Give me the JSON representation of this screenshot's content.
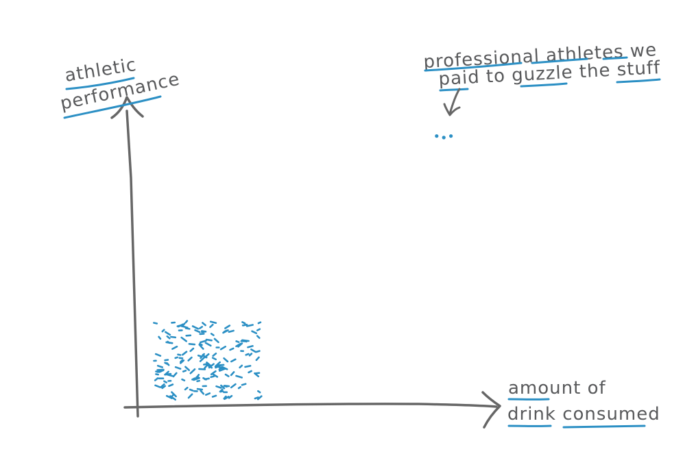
{
  "chart_data": {
    "type": "scatter",
    "xlabel_lines": [
      "amount of",
      "drink consumed"
    ],
    "ylabel_lines": [
      "athletic",
      "performance"
    ],
    "axis_ticks": "none",
    "grid": false,
    "clusters": [
      {
        "description": "dense cluster",
        "x_range": [
          0.05,
          0.35
        ],
        "y_range": [
          0.02,
          0.28
        ],
        "color": "#2b8fc4"
      },
      {
        "description": "outlier group",
        "points": [
          [
            0.84,
            0.91
          ],
          [
            0.86,
            0.905
          ],
          [
            0.88,
            0.91
          ]
        ],
        "color": "#2b8fc4"
      }
    ],
    "annotation": {
      "lines": [
        "professional athletes we",
        "paid to guzzle the stuff"
      ],
      "arrow_to": "outlier group"
    }
  },
  "colors": {
    "axis": "#666666",
    "ink": "#58595b",
    "accent": "#2b8fc4"
  }
}
